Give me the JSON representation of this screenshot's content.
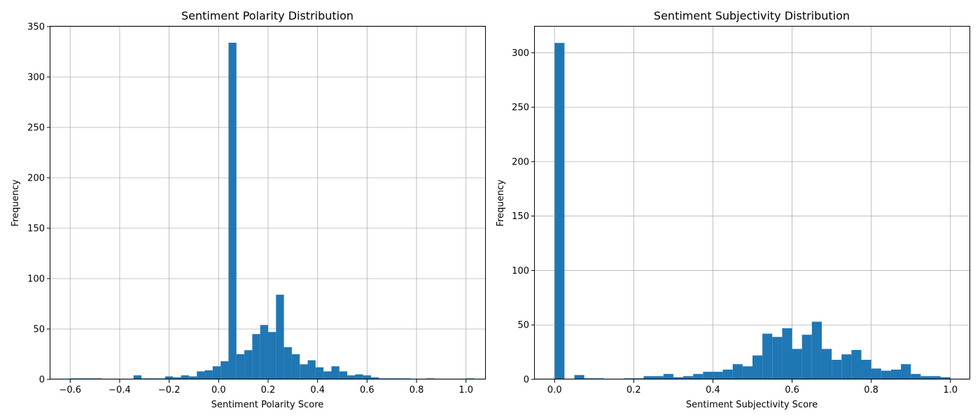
{
  "chart_data": [
    {
      "type": "bar",
      "title": "Sentiment Polarity Distribution",
      "xlabel": "Sentiment Polarity Score",
      "ylabel": "Frequency",
      "xlim": [
        -0.68,
        1.08
      ],
      "ylim": [
        0,
        350
      ],
      "x_ticks": [
        -0.6,
        -0.4,
        -0.2,
        0.0,
        0.2,
        0.4,
        0.6,
        0.8,
        1.0
      ],
      "x_tick_labels": [
        "−0.6",
        "−0.4",
        "−0.2",
        "0.0",
        "0.2",
        "0.4",
        "0.6",
        "0.8",
        "1.0"
      ],
      "y_ticks": [
        0,
        50,
        100,
        150,
        200,
        250,
        300,
        350
      ],
      "y_tick_labels": [
        "0",
        "50",
        "100",
        "150",
        "200",
        "250",
        "300",
        "350"
      ],
      "grid": true,
      "bin_start": -0.6,
      "bin_width": 0.032,
      "values": [
        1,
        1,
        1,
        1,
        0,
        0,
        0,
        0,
        4,
        1,
        1,
        1,
        3,
        2,
        4,
        3,
        8,
        9,
        13,
        18,
        334,
        25,
        29,
        45,
        54,
        47,
        84,
        32,
        25,
        15,
        19,
        12,
        8,
        13,
        8,
        4,
        5,
        4,
        2,
        1,
        1,
        1,
        1,
        0,
        0,
        1,
        0,
        0,
        0,
        0,
        1
      ]
    },
    {
      "type": "bar",
      "title": "Sentiment Subjectivity Distribution",
      "xlabel": "Sentiment Subjectivity Score",
      "ylabel": "Frequency",
      "xlim": [
        -0.05,
        1.05
      ],
      "ylim": [
        0,
        324
      ],
      "x_ticks": [
        0.0,
        0.2,
        0.4,
        0.6,
        0.8,
        1.0
      ],
      "x_tick_labels": [
        "0.0",
        "0.2",
        "0.4",
        "0.6",
        "0.8",
        "1.0"
      ],
      "y_ticks": [
        0,
        50,
        100,
        150,
        200,
        250,
        300
      ],
      "y_tick_labels": [
        "0",
        "50",
        "100",
        "150",
        "200",
        "250",
        "300"
      ],
      "grid": true,
      "bin_start": 0.0,
      "bin_width": 0.025,
      "values": [
        309,
        0,
        4,
        1,
        1,
        0,
        0,
        1,
        1,
        3,
        3,
        5,
        2,
        3,
        5,
        7,
        7,
        9,
        14,
        12,
        22,
        42,
        39,
        47,
        28,
        41,
        53,
        28,
        18,
        23,
        27,
        18,
        10,
        8,
        9,
        14,
        5,
        3,
        3,
        2,
        0,
        0,
        0,
        1,
        1,
        0,
        0,
        0,
        0,
        0
      ]
    }
  ]
}
